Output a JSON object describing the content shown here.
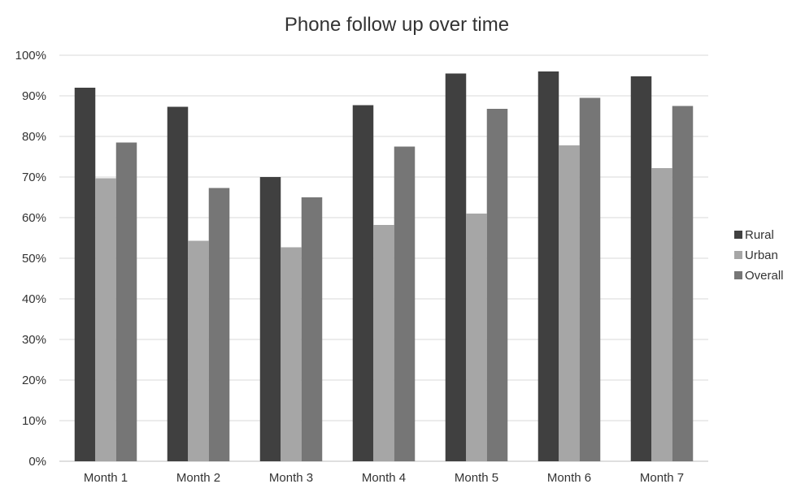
{
  "chart_data": {
    "type": "bar",
    "title": "Phone follow up over time",
    "xlabel": "",
    "ylabel": "",
    "categories": [
      "Month 1",
      "Month 2",
      "Month 3",
      "Month 4",
      "Month 5",
      "Month 6",
      "Month 7"
    ],
    "series": [
      {
        "name": "Rural",
        "color": "#404040",
        "values": [
          0.92,
          0.873,
          0.7,
          0.877,
          0.955,
          0.96,
          0.948
        ]
      },
      {
        "name": "Urban",
        "color": "#a6a6a6",
        "values": [
          0.697,
          0.543,
          0.527,
          0.582,
          0.61,
          0.778,
          0.722
        ]
      },
      {
        "name": "Overall",
        "color": "#767676",
        "values": [
          0.785,
          0.673,
          0.65,
          0.775,
          0.868,
          0.895,
          0.875
        ]
      }
    ],
    "ylim": [
      0,
      1
    ],
    "yticks": [
      "0%",
      "10%",
      "20%",
      "30%",
      "40%",
      "50%",
      "60%",
      "70%",
      "80%",
      "90%",
      "100%"
    ],
    "grid": true,
    "legend": "right"
  }
}
